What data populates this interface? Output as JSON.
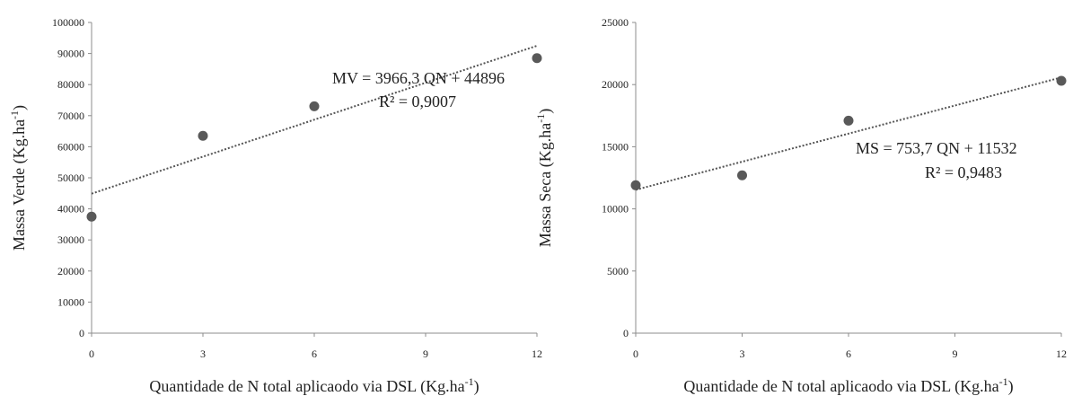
{
  "chart_data": [
    {
      "id": "left",
      "type": "scatter",
      "x": [
        0,
        3,
        6,
        12
      ],
      "y": [
        37500,
        63500,
        73000,
        88500
      ],
      "xlim": [
        0,
        12
      ],
      "ylim": [
        0,
        100000
      ],
      "x_ticks": [
        "0",
        "3",
        "6",
        "9",
        "12"
      ],
      "y_ticks": [
        "0",
        "10000",
        "20000",
        "30000",
        "40000",
        "50000",
        "60000",
        "70000",
        "80000",
        "90000",
        "100000"
      ],
      "xlabel": "Quantidade de N total aplicaodo via DSL (Kg.ha",
      "xlabel_sup": "-1",
      "xlabel_end": ")",
      "ylabel": "Massa Verde (Kg.ha",
      "ylabel_sup": "-1",
      "ylabel_end": ")",
      "trendline": {
        "slope": 3966.3,
        "intercept": 44896,
        "style": "dotted"
      },
      "equation": "MV = 3966,3  QN + 44896",
      "r2": "R² = 0,9007",
      "grid": false,
      "legend": "none"
    },
    {
      "id": "right",
      "type": "scatter",
      "x": [
        0,
        3,
        6,
        12
      ],
      "y": [
        11900,
        12700,
        17100,
        20300
      ],
      "xlim": [
        0,
        12
      ],
      "ylim": [
        0,
        25000
      ],
      "x_ticks": [
        "0",
        "3",
        "6",
        "9",
        "12"
      ],
      "y_ticks": [
        "0",
        "5000",
        "10000",
        "15000",
        "20000",
        "25000"
      ],
      "xlabel": "Quantidade de N total aplicaodo via DSL (Kg.ha",
      "xlabel_sup": "-1",
      "xlabel_end": ")",
      "ylabel": "Massa Seca (Kg.ha",
      "ylabel_sup": "-1",
      "ylabel_end": ")",
      "trendline": {
        "slope": 753.7,
        "intercept": 11532,
        "style": "dotted"
      },
      "equation": "MS = 753,7 QN + 11532",
      "r2": "R² = 0,9483",
      "grid": false,
      "legend": "none"
    }
  ]
}
